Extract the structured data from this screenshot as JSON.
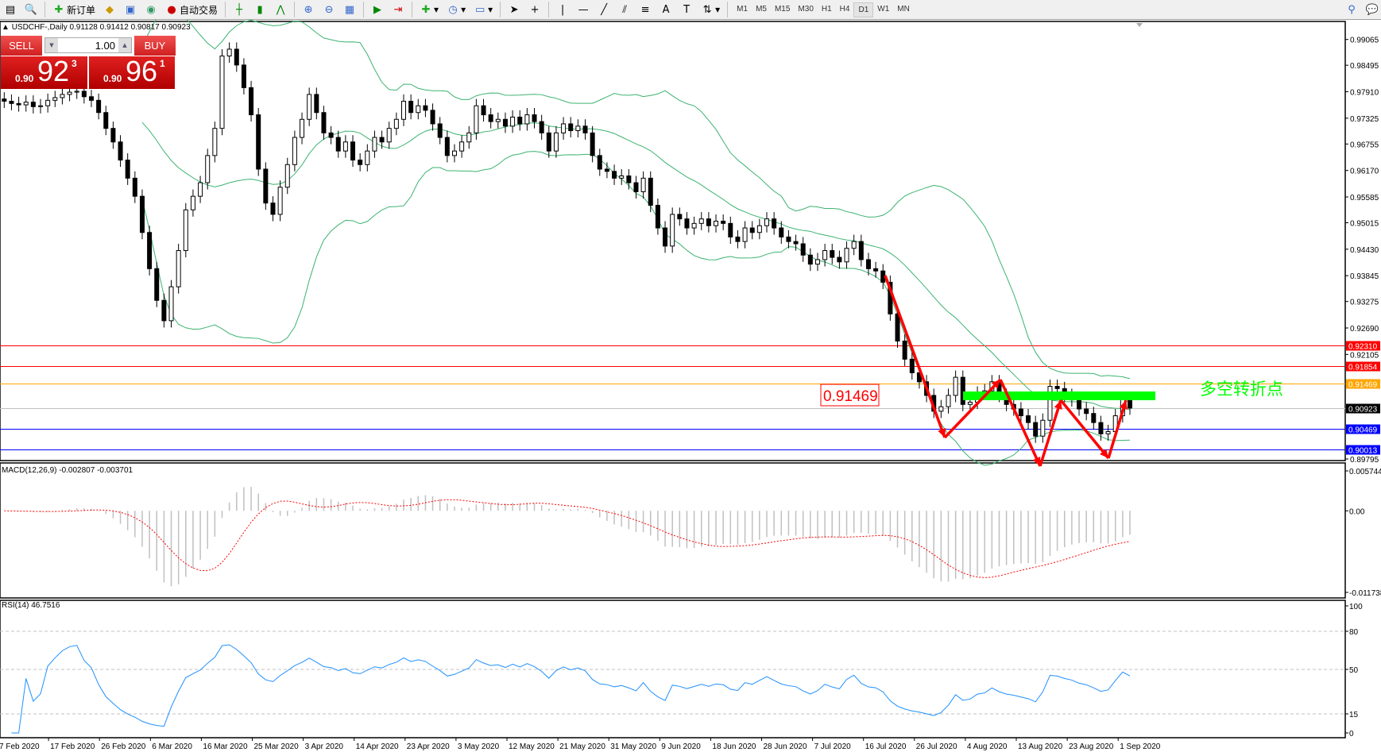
{
  "toolbar": {
    "new_order": "新订单",
    "auto_trading": "自动交易",
    "timeframes": [
      "M1",
      "M5",
      "M15",
      "M30",
      "H1",
      "H4",
      "D1",
      "W1",
      "MN"
    ],
    "active_timeframe": "D1"
  },
  "header": {
    "symbol_line": "USDCHF-,Daily  0.91128 0.91412 0.90817 0.90923"
  },
  "trade_panel": {
    "sell_label": "SELL",
    "buy_label": "BUY",
    "volume": "1.00",
    "sell_price": {
      "small": "0.90",
      "big": "92",
      "sup": "3"
    },
    "buy_price": {
      "small": "0.90",
      "big": "96",
      "sup": "1"
    }
  },
  "chart_data": {
    "type": "candlestick",
    "symbol": "USDCHF-",
    "timeframe": "Daily",
    "closes": [
      0.977,
      0.9765,
      0.9762,
      0.9768,
      0.9758,
      0.976,
      0.9772,
      0.9778,
      0.9785,
      0.979,
      0.9792,
      0.978,
      0.9772,
      0.9745,
      0.971,
      0.968,
      0.964,
      0.96,
      0.956,
      0.948,
      0.94,
      0.933,
      0.9285,
      0.936,
      0.944,
      0.953,
      0.956,
      0.959,
      0.965,
      0.971,
      0.987,
      0.9885,
      0.985,
      0.98,
      0.974,
      0.962,
      0.9545,
      0.952,
      0.958,
      0.963,
      0.969,
      0.973,
      0.9785,
      0.9745,
      0.97,
      0.969,
      0.966,
      0.968,
      0.964,
      0.963,
      0.966,
      0.969,
      0.968,
      0.971,
      0.973,
      0.977,
      0.9745,
      0.976,
      0.975,
      0.972,
      0.969,
      0.965,
      0.966,
      0.968,
      0.97,
      0.976,
      0.974,
      0.9725,
      0.973,
      0.9715,
      0.9735,
      0.972,
      0.974,
      0.9725,
      0.97,
      0.966,
      0.97,
      0.972,
      0.9705,
      0.9715,
      0.97,
      0.965,
      0.962,
      0.9615,
      0.96,
      0.9605,
      0.959,
      0.957,
      0.96,
      0.954,
      0.949,
      0.945,
      0.952,
      0.951,
      0.949,
      0.95,
      0.951,
      0.9495,
      0.9505,
      0.95,
      0.947,
      0.946,
      0.949,
      0.948,
      0.9495,
      0.951,
      0.949,
      0.947,
      0.946,
      0.9455,
      0.943,
      0.941,
      0.942,
      0.944,
      0.9425,
      0.9415,
      0.9445,
      0.946,
      0.942,
      0.94,
      0.9395,
      0.937,
      0.93,
      0.924,
      0.92,
      0.917,
      0.915,
      0.912,
      0.9085,
      0.9095,
      0.912,
      0.916,
      0.91,
      0.9105,
      0.9125,
      0.913,
      0.915,
      0.912,
      0.91,
      0.909,
      0.9075,
      0.906,
      0.903,
      0.9065,
      0.914,
      0.9135,
      0.912,
      0.911,
      0.909,
      0.908,
      0.906,
      0.9035,
      0.904,
      0.9075,
      0.9113,
      0.9092
    ],
    "price_ticks": [
      "0.99065",
      "0.98495",
      "0.97910",
      "0.97325",
      "0.96755",
      "0.96170",
      "0.95585",
      "0.95015",
      "0.94430",
      "0.93845",
      "0.93275",
      "0.92690",
      "0.92105",
      "0.89795"
    ],
    "price_range": [
      0.89795,
      0.99065
    ],
    "date_labels": [
      "7 Feb 2020",
      "17 Feb 2020",
      "26 Feb 2020",
      "6 Mar 2020",
      "16 Mar 2020",
      "25 Mar 2020",
      "3 Apr 2020",
      "14 Apr 2020",
      "23 Apr 2020",
      "3 May 2020",
      "12 May 2020",
      "21 May 2020",
      "31 May 2020",
      "9 Jun 2020",
      "18 Jun 2020",
      "28 Jun 2020",
      "7 Jul 2020",
      "16 Jul 2020",
      "26 Jul 2020",
      "4 Aug 2020",
      "13 Aug 2020",
      "23 Aug 2020",
      "1 Sep 2020"
    ],
    "bollinger": {
      "period": 20,
      "deviation": 2,
      "color": "#3cb371"
    },
    "horizontal_lines": [
      {
        "price": 0.9231,
        "label": "0.92310",
        "color": "#ff0000"
      },
      {
        "price": 0.91854,
        "label": "0.91854",
        "color": "#ff0000"
      },
      {
        "price": 0.91469,
        "label": "0.91469",
        "color": "#ffa500"
      },
      {
        "price": 0.90923,
        "label": "0.90923",
        "color": "#000000",
        "line_color": "#c0c0c0"
      },
      {
        "price": 0.90469,
        "label": "0.90469",
        "color": "#0000ff"
      },
      {
        "price": 0.90013,
        "label": "0.90013",
        "color": "#0000ff"
      }
    ],
    "annotations": {
      "price_callout": "0.91469",
      "pivot_text": "多空转折点",
      "pivot_color": "#00ff00",
      "arrow_color": "#ff0000"
    },
    "macd": {
      "label": "MACD(12,26,9) -0.002807 -0.003701",
      "range": [
        -0.011738,
        0.005744
      ],
      "ticks": [
        "0.005744",
        "0.00",
        "-0.011738"
      ],
      "signal_color": "#ff0000",
      "histogram_color": "#c0c0c0"
    },
    "rsi": {
      "label": "RSI(14) 46.7516",
      "range": [
        0,
        100
      ],
      "ticks": [
        "100",
        "80",
        "50",
        "15",
        "0"
      ],
      "levels": [
        80,
        50,
        15
      ],
      "color": "#1e90ff"
    }
  }
}
